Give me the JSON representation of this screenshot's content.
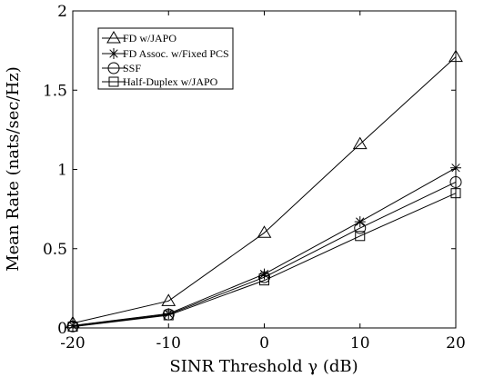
{
  "chart_data": {
    "type": "line",
    "xlabel": "SINR Threshold γ (dB)",
    "ylabel": "Mean Rate (nats/sec/Hz)",
    "x": [
      -20,
      -10,
      0,
      10,
      20
    ],
    "xlim": [
      -20,
      20
    ],
    "ylim": [
      0,
      2
    ],
    "xticks": [
      "-20",
      "-10",
      "0",
      "10",
      "20"
    ],
    "yticks": [
      "0",
      "0.5",
      "1",
      "1.5",
      "2"
    ],
    "grid": false,
    "legend_position": "top-left",
    "series": [
      {
        "name": "FD w/JAPO",
        "marker": "triangle",
        "values": [
          0.03,
          0.17,
          0.6,
          1.16,
          1.71
        ]
      },
      {
        "name": "FD Assoc. w/Fixed PCS",
        "marker": "asterisk",
        "values": [
          0.015,
          0.09,
          0.34,
          0.67,
          1.01
        ]
      },
      {
        "name": "SSF",
        "marker": "circle",
        "values": [
          0.01,
          0.085,
          0.32,
          0.63,
          0.92
        ]
      },
      {
        "name": "Half-Duplex w/JAPO",
        "marker": "square",
        "values": [
          0.008,
          0.08,
          0.3,
          0.58,
          0.85
        ]
      }
    ]
  }
}
